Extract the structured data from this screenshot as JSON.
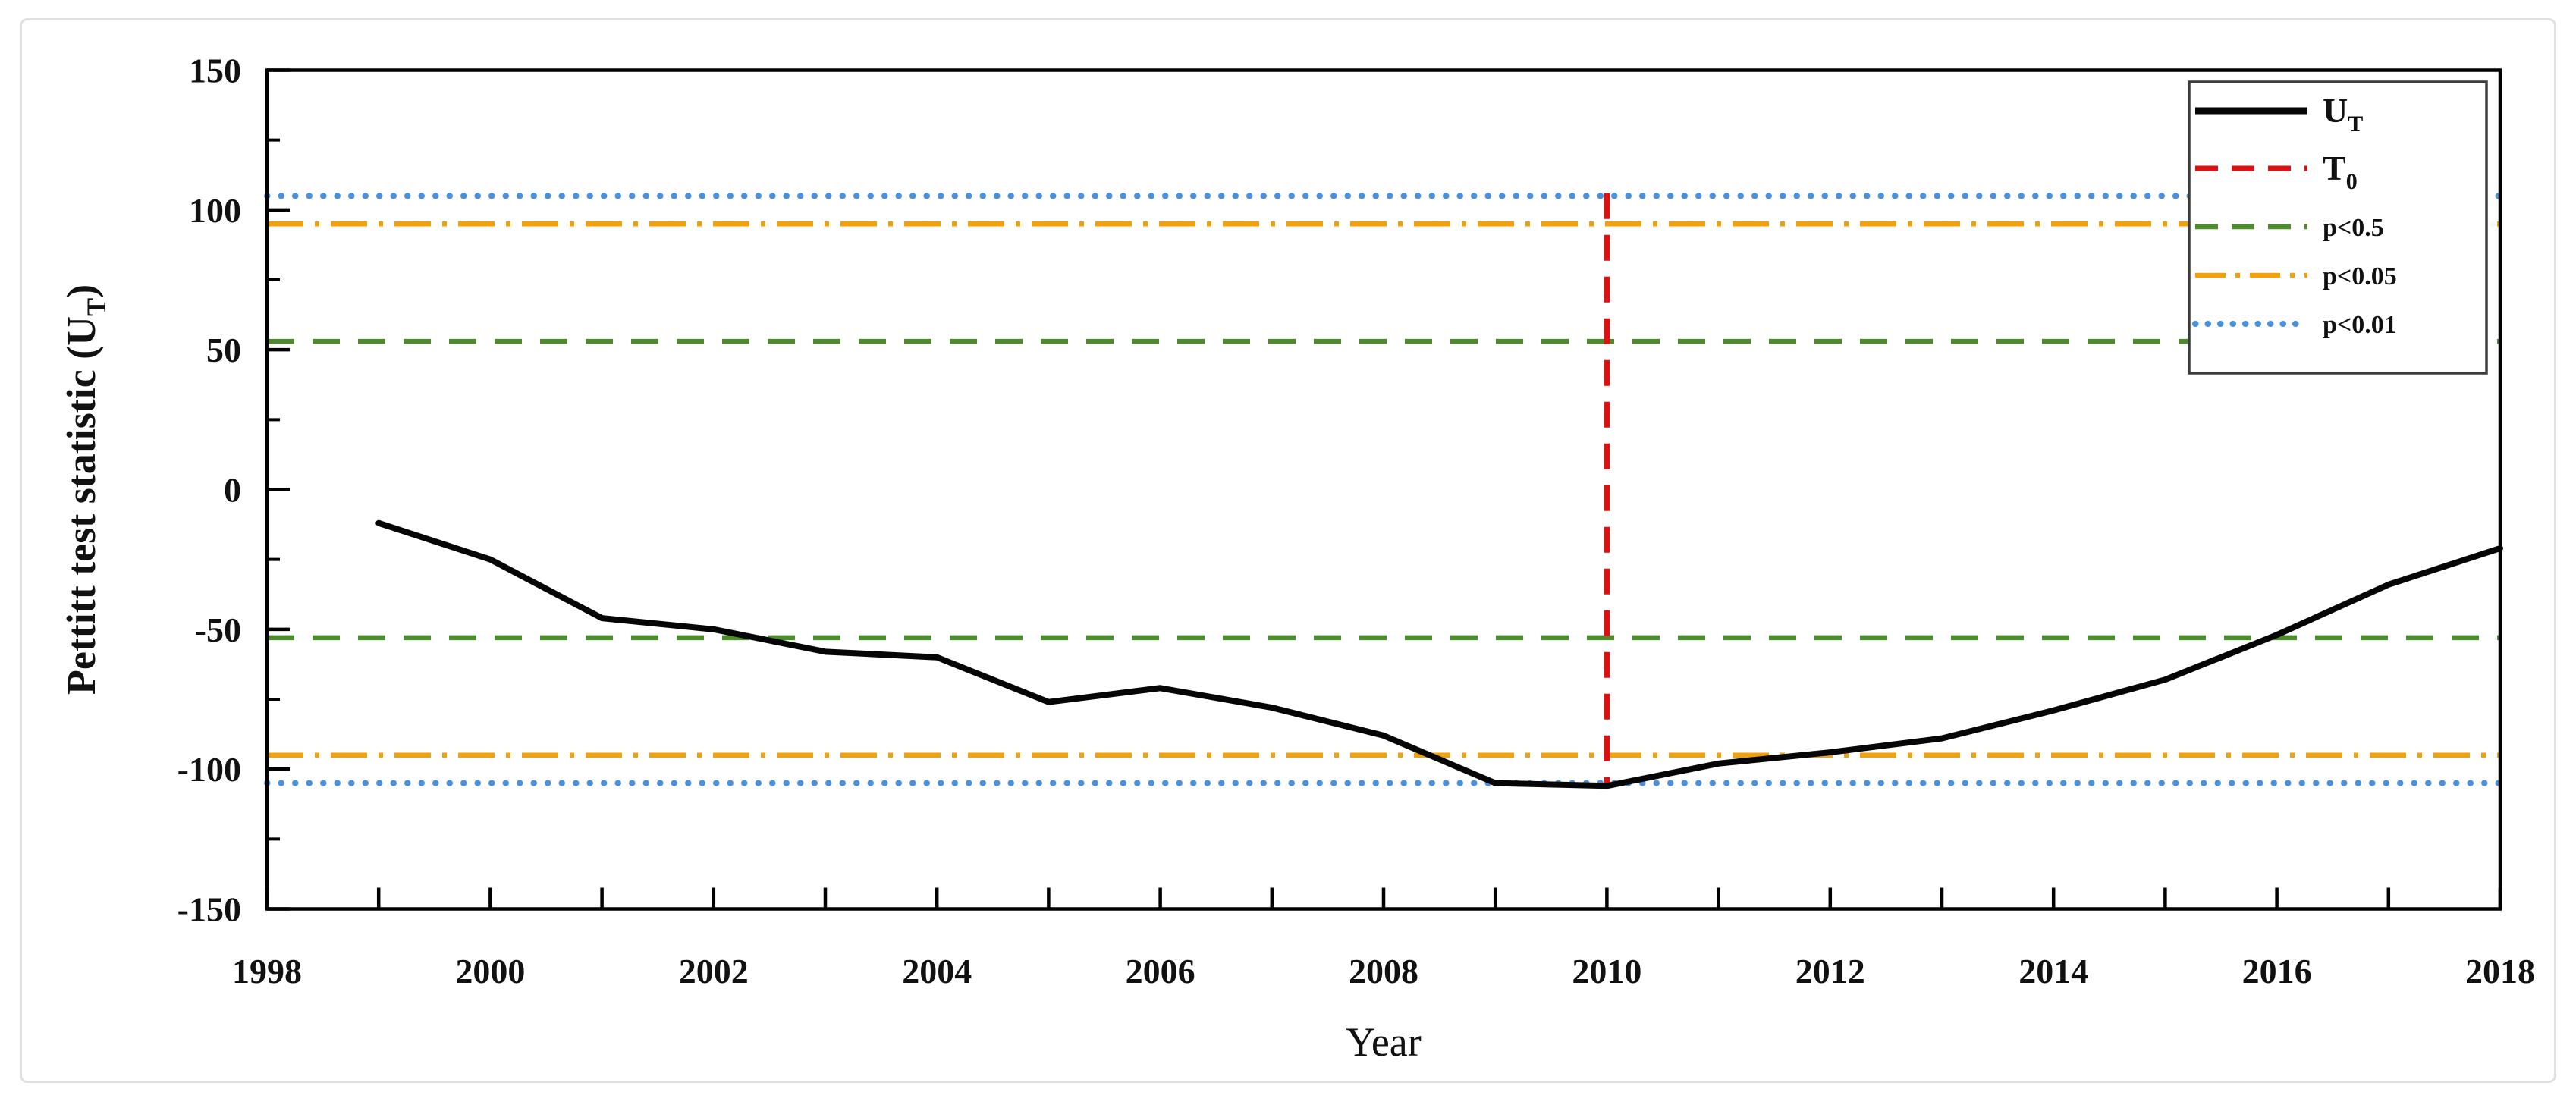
{
  "chart_data": {
    "type": "line",
    "title": "",
    "xlabel": "Year",
    "ylabel": {
      "pre": "Pettitt test statistic (U",
      "sub": "T",
      "post": ")"
    },
    "xlim": [
      1998,
      2018
    ],
    "ylim": [
      -150,
      150
    ],
    "grid": false,
    "legend_position": "top-right",
    "x_ticks": [
      1998,
      1999,
      2000,
      2001,
      2002,
      2003,
      2004,
      2005,
      2006,
      2007,
      2008,
      2009,
      2010,
      2011,
      2012,
      2013,
      2014,
      2015,
      2016,
      2017,
      2018
    ],
    "x_tick_labels": [
      "1998",
      "2000",
      "2002",
      "2004",
      "2006",
      "2008",
      "2010",
      "2012",
      "2014",
      "2016",
      "2018"
    ],
    "y_major_ticks": [
      150,
      100,
      50,
      0,
      -50,
      -100,
      -150
    ],
    "y_major_tick_labels": [
      "150",
      "100",
      "50",
      "0",
      "-50",
      "-100",
      "-150"
    ],
    "y_minor_ticks": [
      125,
      75,
      25,
      -25,
      -75,
      -125
    ],
    "series": [
      {
        "name": "UT",
        "label": {
          "main": "U",
          "sub": "T"
        },
        "color": "#060606",
        "style": "solid",
        "x": [
          1999,
          2000,
          2001,
          2002,
          2003,
          2004,
          2005,
          2006,
          2007,
          2008,
          2009,
          2010,
          2011,
          2012,
          2013,
          2014,
          2015,
          2016,
          2017,
          2018
        ],
        "y": [
          -12,
          -25,
          -46,
          -50,
          -58,
          -60,
          -76,
          -71,
          -78,
          -88,
          -105,
          -106,
          -98,
          -94,
          -89,
          -79,
          -68,
          -52,
          -34,
          -21
        ]
      }
    ],
    "change_point": {
      "name": "T0",
      "label": {
        "main": "T",
        "sub": "0"
      },
      "year": 2010,
      "y_from": -106,
      "y_to": 106,
      "color": "#de1110",
      "style": "dashed"
    },
    "thresholds": [
      {
        "label": "p<0.5",
        "value": 53,
        "color": "#4d8b2c",
        "style": "dashed"
      },
      {
        "label": "p<0.05",
        "value": 95,
        "color": "#f1a20b",
        "style": "dashdot"
      },
      {
        "label": "p<0.01",
        "value": 105,
        "color": "#4a90da",
        "style": "dotted"
      }
    ]
  },
  "colors": {
    "axis": "#000000",
    "text": "#111111",
    "legend_border": "#3c3c3c",
    "frame_border": "#e1e1e1",
    "background": "#ffffff"
  }
}
